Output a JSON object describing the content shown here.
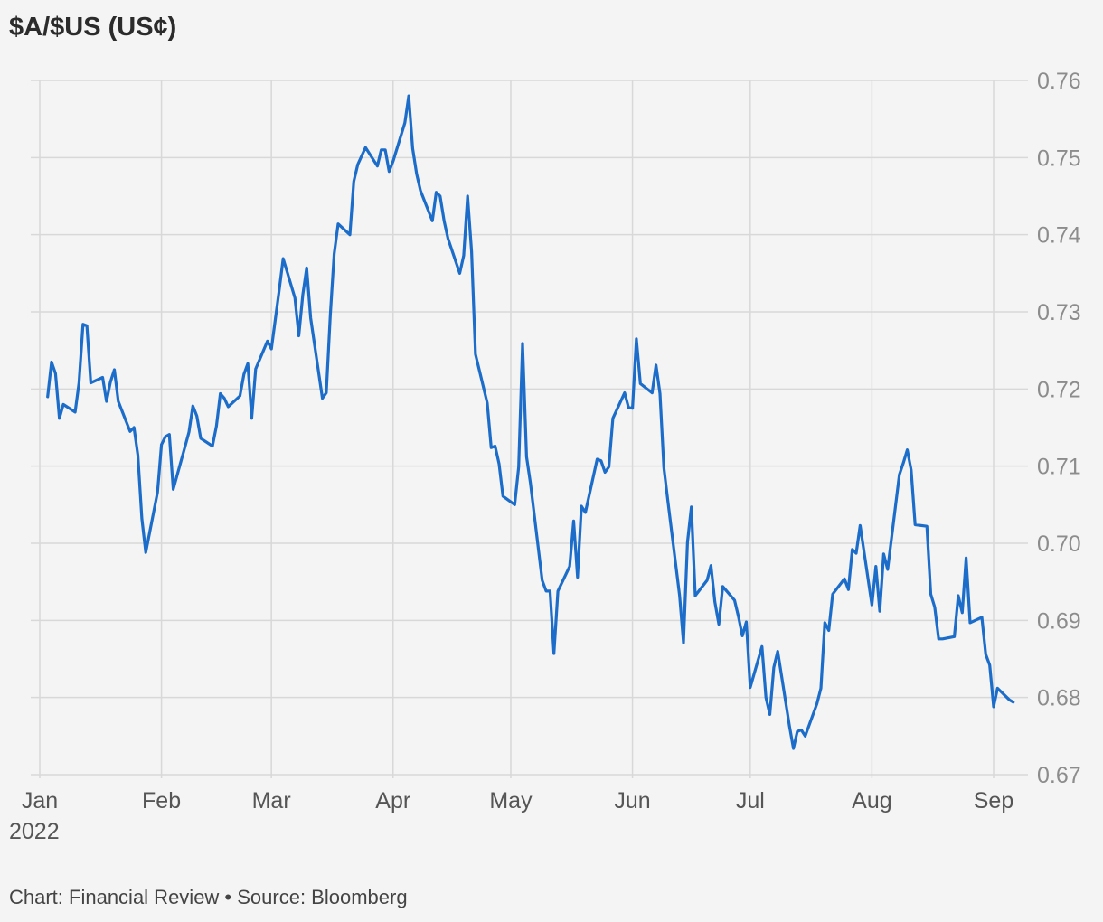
{
  "title": "$A/$US (US¢)",
  "footer": "Chart: Financial Review • Source: Bloomberg",
  "colors": {
    "line": "#1c6cc9",
    "grid": "#d8d8d8",
    "background": "#f4f4f4"
  },
  "chart_data": {
    "type": "line",
    "title": "$A/$US (US¢)",
    "xlabel": "",
    "ylabel": "",
    "ylim": [
      0.67,
      0.76
    ],
    "yticks": [
      "0.76",
      "0.75",
      "0.74",
      "0.73",
      "0.72",
      "0.71",
      "0.70",
      "0.69",
      "0.68",
      "0.67"
    ],
    "xlim": [
      "2022-01-01",
      "2022-09-07"
    ],
    "xticks": [
      {
        "label": "Jan",
        "date": "2022-01-01"
      },
      {
        "label": "Feb",
        "date": "2022-02-01"
      },
      {
        "label": "Mar",
        "date": "2022-03-01"
      },
      {
        "label": "Apr",
        "date": "2022-04-01"
      },
      {
        "label": "May",
        "date": "2022-05-01"
      },
      {
        "label": "Jun",
        "date": "2022-06-01"
      },
      {
        "label": "Jul",
        "date": "2022-07-01"
      },
      {
        "label": "Aug",
        "date": "2022-08-01"
      },
      {
        "label": "Sep",
        "date": "2022-09-01"
      }
    ],
    "year_label": "2022",
    "grid": true,
    "series": [
      {
        "name": "",
        "points": [
          [
            "2022-01-03",
            0.719
          ],
          [
            "2022-01-04",
            0.7235
          ],
          [
            "2022-01-05",
            0.722
          ],
          [
            "2022-01-06",
            0.7162
          ],
          [
            "2022-01-07",
            0.718
          ],
          [
            "2022-01-10",
            0.717
          ],
          [
            "2022-01-11",
            0.7208
          ],
          [
            "2022-01-12",
            0.7284
          ],
          [
            "2022-01-13",
            0.7282
          ],
          [
            "2022-01-14",
            0.7208
          ],
          [
            "2022-01-17",
            0.7215
          ],
          [
            "2022-01-18",
            0.7184
          ],
          [
            "2022-01-19",
            0.7209
          ],
          [
            "2022-01-20",
            0.7225
          ],
          [
            "2022-01-21",
            0.7184
          ],
          [
            "2022-01-24",
            0.7145
          ],
          [
            "2022-01-25",
            0.715
          ],
          [
            "2022-01-26",
            0.7114
          ],
          [
            "2022-01-27",
            0.7032
          ],
          [
            "2022-01-28",
            0.6988
          ],
          [
            "2022-01-31",
            0.7066
          ],
          [
            "2022-02-01",
            0.7128
          ],
          [
            "2022-02-02",
            0.7138
          ],
          [
            "2022-02-03",
            0.7141
          ],
          [
            "2022-02-04",
            0.707
          ],
          [
            "2022-02-07",
            0.7125
          ],
          [
            "2022-02-08",
            0.7144
          ],
          [
            "2022-02-09",
            0.7178
          ],
          [
            "2022-02-10",
            0.7165
          ],
          [
            "2022-02-11",
            0.7136
          ],
          [
            "2022-02-14",
            0.7126
          ],
          [
            "2022-02-15",
            0.7152
          ],
          [
            "2022-02-16",
            0.7194
          ],
          [
            "2022-02-17",
            0.7188
          ],
          [
            "2022-02-18",
            0.7177
          ],
          [
            "2022-02-21",
            0.7191
          ],
          [
            "2022-02-22",
            0.7219
          ],
          [
            "2022-02-23",
            0.7233
          ],
          [
            "2022-02-24",
            0.7162
          ],
          [
            "2022-02-25",
            0.7226
          ],
          [
            "2022-02-28",
            0.7262
          ],
          [
            "2022-03-01",
            0.7252
          ],
          [
            "2022-03-02",
            0.729
          ],
          [
            "2022-03-03",
            0.7328
          ],
          [
            "2022-03-04",
            0.7369
          ],
          [
            "2022-03-07",
            0.7318
          ],
          [
            "2022-03-08",
            0.7269
          ],
          [
            "2022-03-09",
            0.7322
          ],
          [
            "2022-03-10",
            0.7357
          ],
          [
            "2022-03-11",
            0.7292
          ],
          [
            "2022-03-14",
            0.7188
          ],
          [
            "2022-03-15",
            0.7195
          ],
          [
            "2022-03-16",
            0.7295
          ],
          [
            "2022-03-17",
            0.7375
          ],
          [
            "2022-03-18",
            0.7414
          ],
          [
            "2022-03-21",
            0.74
          ],
          [
            "2022-03-22",
            0.7469
          ],
          [
            "2022-03-23",
            0.7491
          ],
          [
            "2022-03-24",
            0.7502
          ],
          [
            "2022-03-25",
            0.7513
          ],
          [
            "2022-03-28",
            0.7489
          ],
          [
            "2022-03-29",
            0.751
          ],
          [
            "2022-03-30",
            0.751
          ],
          [
            "2022-03-31",
            0.7482
          ],
          [
            "2022-04-01",
            0.7495
          ],
          [
            "2022-04-04",
            0.7545
          ],
          [
            "2022-04-05",
            0.758
          ],
          [
            "2022-04-06",
            0.7512
          ],
          [
            "2022-04-07",
            0.7479
          ],
          [
            "2022-04-08",
            0.7457
          ],
          [
            "2022-04-11",
            0.7418
          ],
          [
            "2022-04-12",
            0.7455
          ],
          [
            "2022-04-13",
            0.745
          ],
          [
            "2022-04-14",
            0.7418
          ],
          [
            "2022-04-15",
            0.7395
          ],
          [
            "2022-04-18",
            0.735
          ],
          [
            "2022-04-19",
            0.7373
          ],
          [
            "2022-04-20",
            0.745
          ],
          [
            "2022-04-21",
            0.7378
          ],
          [
            "2022-04-22",
            0.7245
          ],
          [
            "2022-04-25",
            0.7182
          ],
          [
            "2022-04-26",
            0.7124
          ],
          [
            "2022-04-27",
            0.7126
          ],
          [
            "2022-04-28",
            0.7103
          ],
          [
            "2022-04-29",
            0.7061
          ],
          [
            "2022-05-02",
            0.705
          ],
          [
            "2022-05-03",
            0.7099
          ],
          [
            "2022-05-04",
            0.7259
          ],
          [
            "2022-05-05",
            0.7112
          ],
          [
            "2022-05-06",
            0.7078
          ],
          [
            "2022-05-09",
            0.6952
          ],
          [
            "2022-05-10",
            0.6938
          ],
          [
            "2022-05-11",
            0.6938
          ],
          [
            "2022-05-12",
            0.6857
          ],
          [
            "2022-05-13",
            0.6938
          ],
          [
            "2022-05-16",
            0.697
          ],
          [
            "2022-05-17",
            0.7029
          ],
          [
            "2022-05-18",
            0.6956
          ],
          [
            "2022-05-19",
            0.7048
          ],
          [
            "2022-05-20",
            0.704
          ],
          [
            "2022-05-23",
            0.7109
          ],
          [
            "2022-05-24",
            0.7107
          ],
          [
            "2022-05-25",
            0.7092
          ],
          [
            "2022-05-26",
            0.7099
          ],
          [
            "2022-05-27",
            0.7162
          ],
          [
            "2022-05-30",
            0.7195
          ],
          [
            "2022-05-31",
            0.7176
          ],
          [
            "2022-06-01",
            0.7175
          ],
          [
            "2022-06-02",
            0.7265
          ],
          [
            "2022-06-03",
            0.7207
          ],
          [
            "2022-06-06",
            0.7195
          ],
          [
            "2022-06-07",
            0.7231
          ],
          [
            "2022-06-08",
            0.7194
          ],
          [
            "2022-06-09",
            0.7098
          ],
          [
            "2022-06-10",
            0.7055
          ],
          [
            "2022-06-13",
            0.6932
          ],
          [
            "2022-06-14",
            0.6871
          ],
          [
            "2022-06-15",
            0.7001
          ],
          [
            "2022-06-16",
            0.7047
          ],
          [
            "2022-06-17",
            0.6932
          ],
          [
            "2022-06-20",
            0.6952
          ],
          [
            "2022-06-21",
            0.6971
          ],
          [
            "2022-06-22",
            0.6924
          ],
          [
            "2022-06-23",
            0.6895
          ],
          [
            "2022-06-24",
            0.6944
          ],
          [
            "2022-06-27",
            0.6926
          ],
          [
            "2022-06-28",
            0.6905
          ],
          [
            "2022-06-29",
            0.688
          ],
          [
            "2022-06-30",
            0.6898
          ],
          [
            "2022-07-01",
            0.6813
          ],
          [
            "2022-07-04",
            0.6866
          ],
          [
            "2022-07-05",
            0.68
          ],
          [
            "2022-07-06",
            0.6778
          ],
          [
            "2022-07-07",
            0.6839
          ],
          [
            "2022-07-08",
            0.686
          ],
          [
            "2022-07-11",
            0.6763
          ],
          [
            "2022-07-12",
            0.6734
          ],
          [
            "2022-07-13",
            0.6756
          ],
          [
            "2022-07-14",
            0.6758
          ],
          [
            "2022-07-15",
            0.675
          ],
          [
            "2022-07-18",
            0.6792
          ],
          [
            "2022-07-19",
            0.6812
          ],
          [
            "2022-07-20",
            0.6897
          ],
          [
            "2022-07-21",
            0.6887
          ],
          [
            "2022-07-22",
            0.6934
          ],
          [
            "2022-07-25",
            0.6954
          ],
          [
            "2022-07-26",
            0.694
          ],
          [
            "2022-07-27",
            0.6992
          ],
          [
            "2022-07-28",
            0.6987
          ],
          [
            "2022-07-29",
            0.7023
          ],
          [
            "2022-08-01",
            0.692
          ],
          [
            "2022-08-02",
            0.697
          ],
          [
            "2022-08-03",
            0.6912
          ],
          [
            "2022-08-04",
            0.6986
          ],
          [
            "2022-08-05",
            0.6966
          ],
          [
            "2022-08-08",
            0.7089
          ],
          [
            "2022-08-09",
            0.7104
          ],
          [
            "2022-08-10",
            0.7121
          ],
          [
            "2022-08-11",
            0.7095
          ],
          [
            "2022-08-12",
            0.7024
          ],
          [
            "2022-08-15",
            0.7022
          ],
          [
            "2022-08-16",
            0.6934
          ],
          [
            "2022-08-17",
            0.6917
          ],
          [
            "2022-08-18",
            0.6876
          ],
          [
            "2022-08-19",
            0.6876
          ],
          [
            "2022-08-22",
            0.6879
          ],
          [
            "2022-08-23",
            0.6932
          ],
          [
            "2022-08-24",
            0.691
          ],
          [
            "2022-08-25",
            0.6981
          ],
          [
            "2022-08-26",
            0.6897
          ],
          [
            "2022-08-29",
            0.6904
          ],
          [
            "2022-08-30",
            0.6856
          ],
          [
            "2022-08-31",
            0.6842
          ],
          [
            "2022-09-01",
            0.6788
          ],
          [
            "2022-09-02",
            0.6812
          ],
          [
            "2022-09-05",
            0.6797
          ],
          [
            "2022-09-06",
            0.6794
          ]
        ]
      }
    ]
  }
}
